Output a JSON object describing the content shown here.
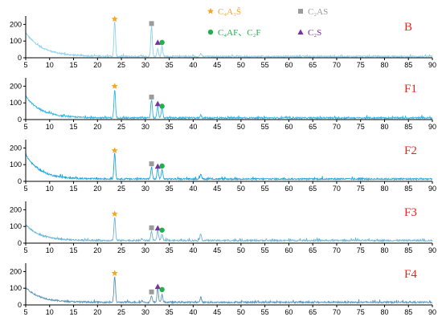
{
  "chart_data": {
    "type": "line",
    "title": "",
    "xlabel": "",
    "ylabel": "",
    "xlim": [
      5,
      90
    ],
    "ylim": [
      0,
      250
    ],
    "x_ticks": [
      5,
      10,
      15,
      20,
      25,
      30,
      35,
      40,
      45,
      50,
      55,
      60,
      65,
      70,
      75,
      80,
      85,
      90
    ],
    "y_ticks": [
      0,
      100,
      200
    ],
    "grid": false,
    "colors": {
      "C4A3S": "#f5a623",
      "C2AS": "#9b9b9b",
      "C4AF_C2F": "#22b04b",
      "C2S": "#7b2fa3",
      "panel_label": "#e0281e"
    },
    "legend": [
      {
        "key": "C4A3S",
        "symbol": "star",
        "text": "C₄A₃Š"
      },
      {
        "key": "C2AS",
        "symbol": "square",
        "text": "C₂AS"
      },
      {
        "key": "C4AF_C2F",
        "symbol": "circle",
        "text": "C₄AF、C₂F"
      },
      {
        "key": "C2S",
        "symbol": "triangle",
        "text": "C₂S"
      }
    ],
    "panels": [
      {
        "label": "B",
        "color": "#8fd3f0",
        "baseline": 8,
        "start": 150,
        "decay": 3.5,
        "peaks": [
          [
            23.6,
            220
          ],
          [
            31.3,
            190
          ],
          [
            32.6,
            55
          ],
          [
            33.5,
            70
          ],
          [
            41.6,
            25
          ],
          [
            51.3,
            8
          ],
          [
            29.3,
            10
          ]
        ],
        "markers": [
          [
            "C4A3S",
            23.6,
            232
          ],
          [
            "C2AS",
            31.3,
            205
          ],
          [
            "C2S",
            32.6,
            92
          ],
          [
            "C4AF_C2F",
            33.5,
            92
          ]
        ]
      },
      {
        "label": "F1",
        "color": "#2fb5e8",
        "baseline": 10,
        "start": 140,
        "decay": 3.2,
        "peaks": [
          [
            23.6,
            175
          ],
          [
            31.3,
            120
          ],
          [
            32.6,
            80
          ],
          [
            33.5,
            70
          ],
          [
            41.6,
            28
          ],
          [
            29.3,
            15
          ]
        ],
        "markers": [
          [
            "C4A3S",
            23.6,
            200
          ],
          [
            "C2AS",
            31.3,
            135
          ],
          [
            "C2S",
            32.6,
            95
          ],
          [
            "C4AF_C2F",
            33.5,
            80
          ]
        ]
      },
      {
        "label": "F2",
        "color": "#1ea7e0",
        "baseline": 14,
        "start": 160,
        "decay": 3.0,
        "peaks": [
          [
            23.6,
            170
          ],
          [
            31.3,
            85
          ],
          [
            32.6,
            75
          ],
          [
            33.5,
            70
          ],
          [
            41.6,
            45
          ],
          [
            29.3,
            18
          ]
        ],
        "markers": [
          [
            "C4A3S",
            23.6,
            185
          ],
          [
            "C2AS",
            31.3,
            105
          ],
          [
            "C2S",
            32.6,
            90
          ],
          [
            "C4AF_C2F",
            33.5,
            92
          ]
        ]
      },
      {
        "label": "F3",
        "color": "#6db6d6",
        "baseline": 16,
        "start": 110,
        "decay": 3.0,
        "peaks": [
          [
            23.6,
            155
          ],
          [
            31.3,
            70
          ],
          [
            32.6,
            75
          ],
          [
            33.5,
            55
          ],
          [
            41.6,
            50
          ],
          [
            29.3,
            25
          ]
        ],
        "markers": [
          [
            "C4A3S",
            23.6,
            175
          ],
          [
            "C2AS",
            31.3,
            92
          ],
          [
            "C2S",
            32.6,
            90
          ],
          [
            "C4AF_C2F",
            33.5,
            78
          ]
        ]
      },
      {
        "label": "F4",
        "color": "#5a93b8",
        "baseline": 16,
        "start": 105,
        "decay": 3.0,
        "peaks": [
          [
            23.6,
            170
          ],
          [
            31.3,
            55
          ],
          [
            32.6,
            95
          ],
          [
            33.5,
            60
          ],
          [
            41.6,
            45
          ],
          [
            29.3,
            25
          ]
        ],
        "markers": [
          [
            "C4A3S",
            23.6,
            190
          ],
          [
            "C2AS",
            31.3,
            78
          ],
          [
            "C2S",
            32.6,
            110
          ],
          [
            "C4AF_C2F",
            33.5,
            92
          ]
        ]
      }
    ]
  }
}
